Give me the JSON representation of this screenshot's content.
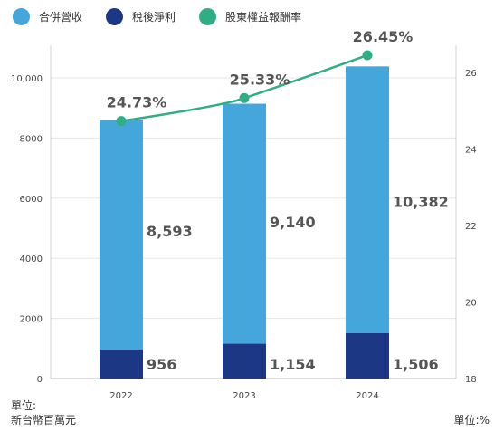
{
  "legend": {
    "revenue": "合併營收",
    "net_income": "稅後淨利",
    "roe": "股東權益報酬率"
  },
  "units": {
    "left_line1": "單位:",
    "left_line2": "新台幣百萬元",
    "right": "單位:%"
  },
  "colors": {
    "revenue": "#45a6db",
    "net_income": "#1c3783",
    "roe": "#2fae83"
  },
  "chart_data": {
    "type": "bar",
    "categories": [
      "2022",
      "2023",
      "2024"
    ],
    "series": [
      {
        "name": "合併營收",
        "values": [
          8593,
          9140,
          10382
        ],
        "labels": [
          "8,593",
          "9,140",
          "10,382"
        ]
      },
      {
        "name": "稅後淨利",
        "values": [
          956,
          1154,
          1506
        ],
        "labels": [
          "956",
          "1,154",
          "1,506"
        ]
      },
      {
        "name": "股東權益報酬率",
        "type": "line",
        "axis": "right",
        "values": [
          24.73,
          25.33,
          26.45
        ],
        "labels": [
          "24.73%",
          "25.33%",
          "26.45%"
        ]
      }
    ],
    "y_left": {
      "ticks": [
        "0",
        "2000",
        "4000",
        "6000",
        "8000",
        "10,000"
      ],
      "tick_values": [
        0,
        2000,
        4000,
        6000,
        8000,
        10000
      ],
      "range": [
        0,
        10000
      ]
    },
    "y_right": {
      "ticks": [
        "18",
        "20",
        "22",
        "24",
        "26"
      ],
      "tick_values": [
        18,
        20,
        22,
        24,
        26
      ],
      "range": [
        18,
        26
      ]
    },
    "grid": true,
    "legend_position": "top-left"
  }
}
